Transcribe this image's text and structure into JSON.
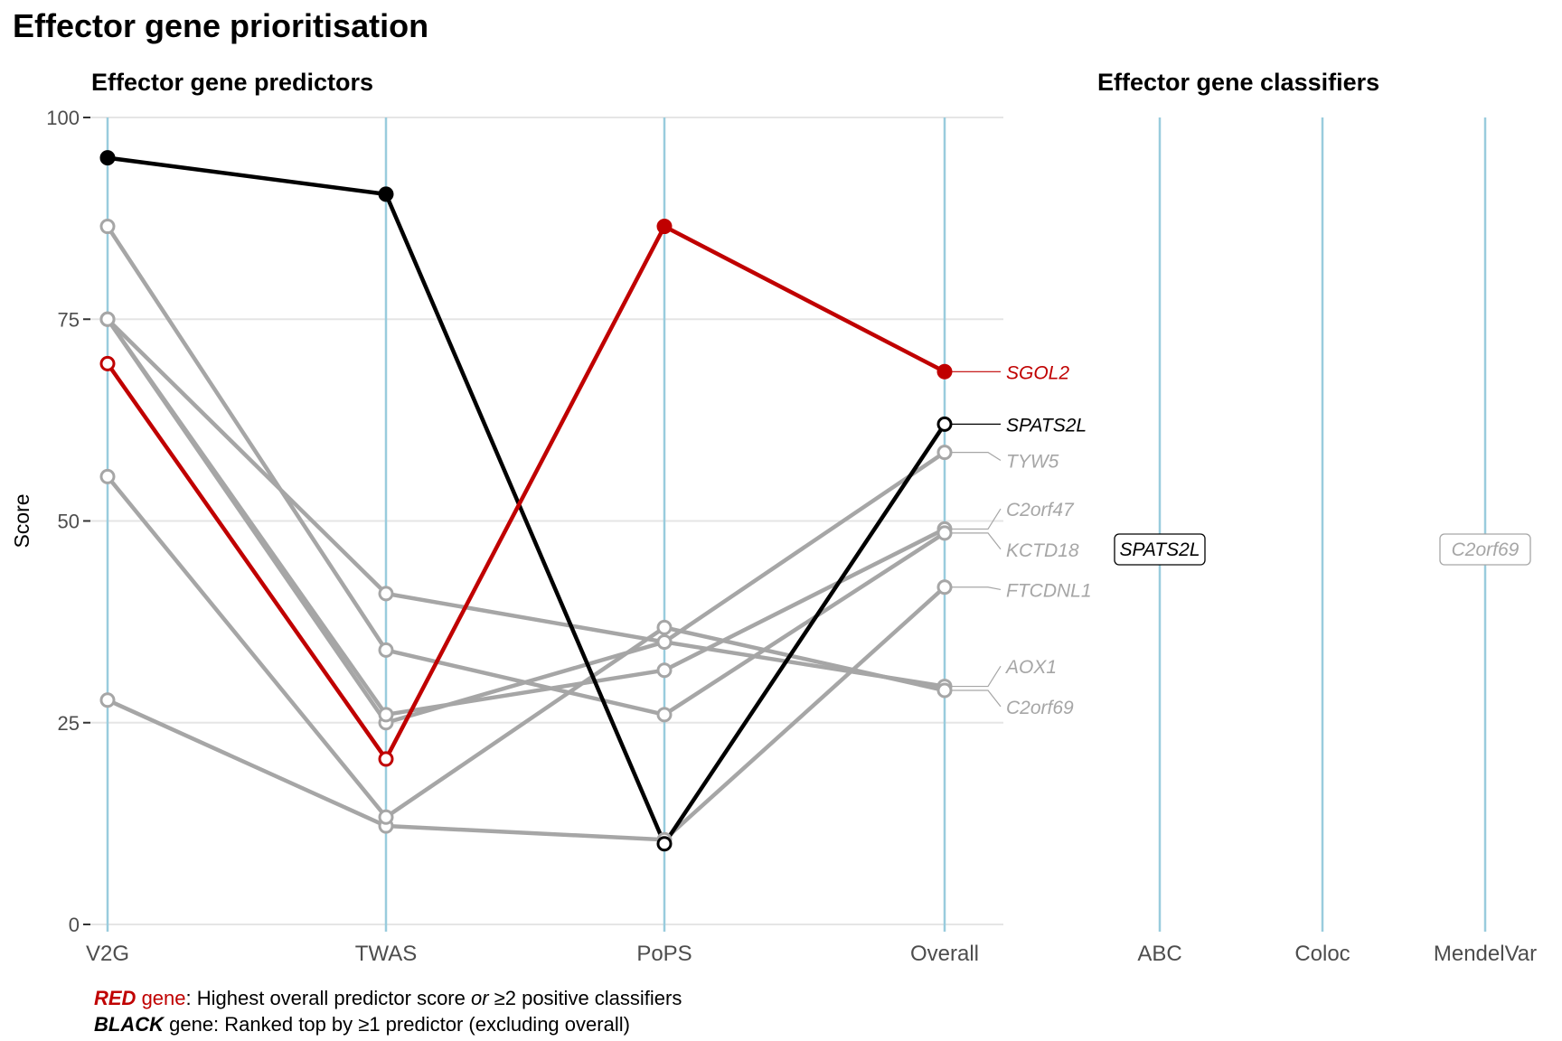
{
  "title": "Effector gene prioritisation",
  "colors": {
    "red": "#C00000",
    "black": "#000000",
    "grey": "#A6A6A6",
    "axis_line": "#99CCDD",
    "grid": "#E5E5E5"
  },
  "chart_data": [
    {
      "type": "line",
      "title": "Effector gene predictors",
      "xlabel": "",
      "ylabel": "Score",
      "categories": [
        "V2G",
        "TWAS",
        "PoPS",
        "Overall"
      ],
      "ylim": [
        0,
        100
      ],
      "yticks": [
        "0",
        "25",
        "50",
        "75",
        "100"
      ],
      "grid": true,
      "series": [
        {
          "name": "SGOL2",
          "color": "red",
          "values": [
            69.5,
            20.5,
            86.5,
            68.5
          ],
          "filled": [
            false,
            false,
            true,
            true
          ]
        },
        {
          "name": "SPATS2L",
          "color": "black",
          "values": [
            95,
            90.5,
            10,
            62
          ],
          "filled": [
            true,
            true,
            false,
            false
          ]
        },
        {
          "name": "TYW5",
          "color": "grey",
          "values": [
            75,
            25,
            35,
            58.5
          ],
          "filled": [
            false,
            false,
            false,
            false
          ]
        },
        {
          "name": "C2orf47",
          "color": "grey",
          "values": [
            75,
            26,
            31.5,
            49
          ],
          "filled": [
            false,
            false,
            false,
            false
          ]
        },
        {
          "name": "KCTD18",
          "color": "grey",
          "values": [
            86.5,
            34,
            26,
            48.5
          ],
          "filled": [
            false,
            false,
            false,
            false
          ]
        },
        {
          "name": "FTCDNL1",
          "color": "grey",
          "values": [
            27.8,
            12.2,
            10.5,
            41.8
          ],
          "filled": [
            false,
            false,
            false,
            false
          ]
        },
        {
          "name": "AOX1",
          "color": "grey",
          "values": [
            75,
            41,
            35,
            29.5
          ],
          "filled": [
            false,
            false,
            false,
            false
          ]
        },
        {
          "name": "C2orf69",
          "color": "grey",
          "values": [
            55.5,
            13.3,
            36.8,
            29
          ],
          "filled": [
            false,
            false,
            false,
            false
          ]
        }
      ],
      "labels": [
        {
          "text": "SGOL2",
          "color": "red",
          "y": 68.5
        },
        {
          "text": "SPATS2L",
          "color": "black",
          "y": 62
        },
        {
          "text": "TYW5",
          "color": "grey",
          "y": 57.5
        },
        {
          "text": "C2orf47",
          "color": "grey",
          "y": 51.5
        },
        {
          "text": "KCTD18",
          "color": "grey",
          "y": 46.5
        },
        {
          "text": "FTCDNL1",
          "color": "grey",
          "y": 41.5
        },
        {
          "text": "AOX1",
          "color": "grey",
          "y": 32
        },
        {
          "text": "C2orf69",
          "color": "grey",
          "y": 27
        }
      ]
    },
    {
      "type": "table",
      "title": "Effector gene classifiers",
      "categories": [
        "ABC",
        "Coloc",
        "MendelVar"
      ],
      "entries": [
        {
          "category": "ABC",
          "gene": "SPATS2L",
          "color": "black"
        },
        {
          "category": "MendelVar",
          "gene": "C2orf69",
          "color": "grey"
        }
      ]
    }
  ],
  "caption": {
    "red_word": "RED",
    "red_gene": " gene",
    "red_text_1": ": Highest overall predictor score ",
    "red_or": "or",
    "red_text_2": " ≥2 positive classifiers",
    "black_word": "BLACK",
    "black_text": " gene: Ranked top by ≥1 predictor (excluding overall)"
  }
}
